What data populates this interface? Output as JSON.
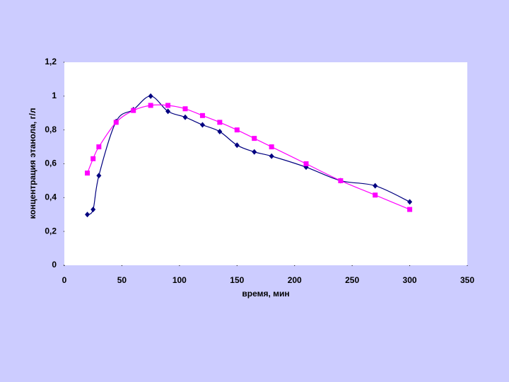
{
  "chart_data": {
    "type": "scatter",
    "xlabel": "время, мин",
    "ylabel": "концентрация этанола, г/л",
    "x": [
      20,
      25,
      30,
      45,
      60,
      75,
      90,
      105,
      120,
      135,
      150,
      165,
      180,
      210,
      240,
      270,
      300
    ],
    "series": [
      {
        "color": "#000080",
        "marker": "diamond",
        "values": [
          0.3,
          0.33,
          0.53,
          0.85,
          0.92,
          1.0,
          0.91,
          0.875,
          0.83,
          0.79,
          0.71,
          0.67,
          0.645,
          0.58,
          0.5,
          0.47,
          0.375
        ]
      },
      {
        "color": "#ff00ff",
        "marker": "square",
        "values": [
          0.545,
          0.63,
          0.7,
          0.845,
          0.915,
          0.945,
          0.945,
          0.925,
          0.885,
          0.845,
          0.8,
          0.75,
          0.7,
          0.6,
          0.5,
          0.415,
          0.33
        ]
      }
    ],
    "xlim": [
      0,
      350
    ],
    "xticks": [
      0,
      50,
      100,
      150,
      200,
      250,
      300,
      350
    ],
    "ylim": [
      0,
      1.2
    ],
    "yticks": [
      0,
      {
        "value": 0.2,
        "label": "0,2"
      },
      {
        "value": 0.4,
        "label": "0,4"
      },
      {
        "value": 0.6,
        "label": "0,6"
      },
      {
        "value": 0.8,
        "label": "0,8"
      },
      1,
      {
        "value": 1.2,
        "label": "1,2"
      }
    ],
    "smooth": true
  }
}
